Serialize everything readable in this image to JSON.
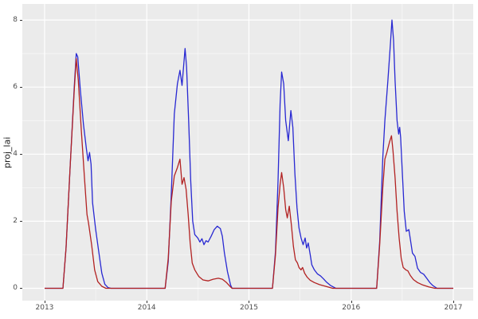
{
  "chart_data": {
    "type": "line",
    "title": "",
    "xlabel": "",
    "ylabel": "proj_lai",
    "legend": "none",
    "panel_bg": "#EBEBEB",
    "grid_color": "#FFFFFF",
    "tick_text_color": "#4D4D4D",
    "tick_mark_color": "#333333",
    "xlim": [
      2012.782,
      2017.195
    ],
    "ylim": [
      -0.369,
      8.478
    ],
    "x_major_ticks": [
      2013,
      2014,
      2015,
      2016,
      2017
    ],
    "x_minor_ticks": [
      2013.5,
      2014.5,
      2015.5,
      2016.5
    ],
    "y_major_ticks": [
      0,
      2,
      4,
      6,
      8
    ],
    "y_minor_ticks": [
      1,
      3,
      5,
      7
    ],
    "x_tick_labels": [
      "2013",
      "2014",
      "2015",
      "2016",
      "2017"
    ],
    "y_tick_labels": [
      "0",
      "2",
      "4",
      "6",
      "8"
    ],
    "series": [
      {
        "name": "blue-series",
        "color": "#2828D2",
        "points": [
          [
            2013.0,
            0
          ],
          [
            2013.18,
            0
          ],
          [
            2013.21,
            1.2
          ],
          [
            2013.25,
            3.6
          ],
          [
            2013.29,
            6.0
          ],
          [
            2013.31,
            7.0
          ],
          [
            2013.325,
            6.9
          ],
          [
            2013.35,
            5.9
          ],
          [
            2013.38,
            4.9
          ],
          [
            2013.41,
            4.15
          ],
          [
            2013.425,
            3.8
          ],
          [
            2013.44,
            4.05
          ],
          [
            2013.455,
            3.7
          ],
          [
            2013.47,
            2.55
          ],
          [
            2013.5,
            1.75
          ],
          [
            2013.53,
            1.1
          ],
          [
            2013.56,
            0.45
          ],
          [
            2013.59,
            0.12
          ],
          [
            2013.62,
            0.02
          ],
          [
            2013.65,
            0
          ],
          [
            2014.18,
            0
          ],
          [
            2014.21,
            0.8
          ],
          [
            2014.24,
            2.8
          ],
          [
            2014.27,
            5.2
          ],
          [
            2014.3,
            6.1
          ],
          [
            2014.325,
            6.5
          ],
          [
            2014.345,
            6.05
          ],
          [
            2014.375,
            7.15
          ],
          [
            2014.39,
            6.6
          ],
          [
            2014.41,
            5.0
          ],
          [
            2014.43,
            3.2
          ],
          [
            2014.45,
            2.0
          ],
          [
            2014.47,
            1.6
          ],
          [
            2014.5,
            1.5
          ],
          [
            2014.52,
            1.38
          ],
          [
            2014.54,
            1.48
          ],
          [
            2014.56,
            1.3
          ],
          [
            2014.58,
            1.42
          ],
          [
            2014.6,
            1.38
          ],
          [
            2014.63,
            1.55
          ],
          [
            2014.66,
            1.75
          ],
          [
            2014.69,
            1.85
          ],
          [
            2014.72,
            1.78
          ],
          [
            2014.74,
            1.55
          ],
          [
            2014.76,
            1.05
          ],
          [
            2014.79,
            0.5
          ],
          [
            2014.82,
            0.1
          ],
          [
            2014.835,
            0
          ],
          [
            2015.23,
            0
          ],
          [
            2015.26,
            1.1
          ],
          [
            2015.285,
            3.2
          ],
          [
            2015.305,
            5.5
          ],
          [
            2015.32,
            6.45
          ],
          [
            2015.34,
            6.1
          ],
          [
            2015.36,
            5.0
          ],
          [
            2015.385,
            4.4
          ],
          [
            2015.41,
            5.3
          ],
          [
            2015.43,
            4.8
          ],
          [
            2015.45,
            3.4
          ],
          [
            2015.47,
            2.4
          ],
          [
            2015.49,
            1.8
          ],
          [
            2015.51,
            1.5
          ],
          [
            2015.53,
            1.3
          ],
          [
            2015.55,
            1.5
          ],
          [
            2015.565,
            1.2
          ],
          [
            2015.58,
            1.35
          ],
          [
            2015.6,
            1.0
          ],
          [
            2015.615,
            0.7
          ],
          [
            2015.64,
            0.55
          ],
          [
            2015.67,
            0.43
          ],
          [
            2015.7,
            0.37
          ],
          [
            2015.73,
            0.28
          ],
          [
            2015.76,
            0.18
          ],
          [
            2015.8,
            0.08
          ],
          [
            2015.85,
            0
          ],
          [
            2016.25,
            0
          ],
          [
            2016.28,
            1.4
          ],
          [
            2016.31,
            3.9
          ],
          [
            2016.33,
            5.0
          ],
          [
            2016.36,
            6.2
          ],
          [
            2016.385,
            7.3
          ],
          [
            2016.4,
            8.0
          ],
          [
            2016.415,
            7.4
          ],
          [
            2016.43,
            6.2
          ],
          [
            2016.45,
            5.0
          ],
          [
            2016.465,
            4.6
          ],
          [
            2016.475,
            4.8
          ],
          [
            2016.485,
            4.5
          ],
          [
            2016.5,
            3.5
          ],
          [
            2016.52,
            2.3
          ],
          [
            2016.54,
            1.7
          ],
          [
            2016.565,
            1.75
          ],
          [
            2016.585,
            1.35
          ],
          [
            2016.6,
            1.05
          ],
          [
            2016.625,
            0.95
          ],
          [
            2016.65,
            0.6
          ],
          [
            2016.68,
            0.47
          ],
          [
            2016.71,
            0.42
          ],
          [
            2016.74,
            0.3
          ],
          [
            2016.77,
            0.17
          ],
          [
            2016.8,
            0.08
          ],
          [
            2016.84,
            0
          ],
          [
            2017.0,
            0
          ]
        ]
      },
      {
        "name": "red-series",
        "color": "#B22222",
        "points": [
          [
            2013.0,
            0
          ],
          [
            2013.18,
            0
          ],
          [
            2013.21,
            1.2
          ],
          [
            2013.25,
            3.6
          ],
          [
            2013.29,
            5.9
          ],
          [
            2013.31,
            6.85
          ],
          [
            2013.33,
            6.2
          ],
          [
            2013.36,
            4.7
          ],
          [
            2013.39,
            3.3
          ],
          [
            2013.415,
            2.2
          ],
          [
            2013.43,
            1.95
          ],
          [
            2013.46,
            1.3
          ],
          [
            2013.49,
            0.55
          ],
          [
            2013.52,
            0.2
          ],
          [
            2013.56,
            0.06
          ],
          [
            2013.6,
            0
          ],
          [
            2014.18,
            0
          ],
          [
            2014.21,
            0.9
          ],
          [
            2014.24,
            2.6
          ],
          [
            2014.27,
            3.35
          ],
          [
            2014.3,
            3.6
          ],
          [
            2014.325,
            3.85
          ],
          [
            2014.345,
            3.1
          ],
          [
            2014.365,
            3.3
          ],
          [
            2014.385,
            2.95
          ],
          [
            2014.405,
            2.2
          ],
          [
            2014.425,
            1.35
          ],
          [
            2014.445,
            0.75
          ],
          [
            2014.47,
            0.55
          ],
          [
            2014.51,
            0.35
          ],
          [
            2014.55,
            0.25
          ],
          [
            2014.6,
            0.22
          ],
          [
            2014.65,
            0.27
          ],
          [
            2014.7,
            0.3
          ],
          [
            2014.74,
            0.27
          ],
          [
            2014.78,
            0.17
          ],
          [
            2014.82,
            0.04
          ],
          [
            2014.835,
            0
          ],
          [
            2015.23,
            0
          ],
          [
            2015.26,
            1.0
          ],
          [
            2015.285,
            2.4
          ],
          [
            2015.305,
            3.1
          ],
          [
            2015.32,
            3.45
          ],
          [
            2015.34,
            3.0
          ],
          [
            2015.36,
            2.35
          ],
          [
            2015.375,
            2.1
          ],
          [
            2015.395,
            2.45
          ],
          [
            2015.415,
            1.9
          ],
          [
            2015.435,
            1.25
          ],
          [
            2015.455,
            0.85
          ],
          [
            2015.475,
            0.75
          ],
          [
            2015.49,
            0.62
          ],
          [
            2015.51,
            0.55
          ],
          [
            2015.525,
            0.62
          ],
          [
            2015.545,
            0.45
          ],
          [
            2015.57,
            0.33
          ],
          [
            2015.6,
            0.24
          ],
          [
            2015.64,
            0.17
          ],
          [
            2015.69,
            0.11
          ],
          [
            2015.75,
            0.06
          ],
          [
            2015.82,
            0
          ],
          [
            2016.25,
            0
          ],
          [
            2016.28,
            1.3
          ],
          [
            2016.31,
            3.0
          ],
          [
            2016.33,
            3.85
          ],
          [
            2016.35,
            4.05
          ],
          [
            2016.375,
            4.35
          ],
          [
            2016.395,
            4.55
          ],
          [
            2016.41,
            4.1
          ],
          [
            2016.43,
            3.3
          ],
          [
            2016.45,
            2.3
          ],
          [
            2016.47,
            1.5
          ],
          [
            2016.49,
            0.9
          ],
          [
            2016.51,
            0.62
          ],
          [
            2016.535,
            0.55
          ],
          [
            2016.555,
            0.52
          ],
          [
            2016.58,
            0.38
          ],
          [
            2016.61,
            0.26
          ],
          [
            2016.65,
            0.17
          ],
          [
            2016.7,
            0.1
          ],
          [
            2016.76,
            0.04
          ],
          [
            2016.82,
            0
          ],
          [
            2017.0,
            0
          ]
        ]
      }
    ]
  }
}
